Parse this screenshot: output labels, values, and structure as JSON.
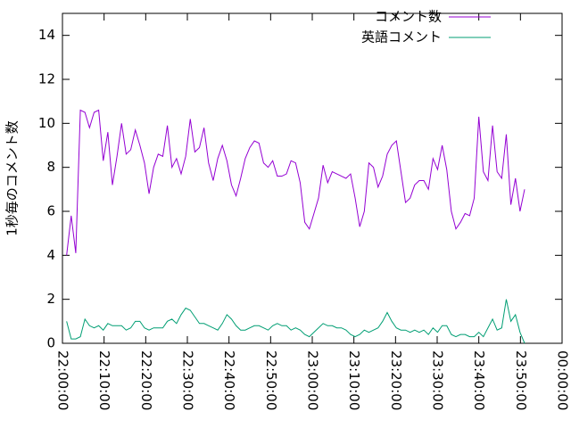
{
  "chart_data": {
    "type": "line",
    "ylabel": "1秒毎のコメント数",
    "xlim": [
      "22:00:00",
      "00:00:00"
    ],
    "xticks": [
      "22:00:00",
      "22:10:00",
      "22:20:00",
      "22:30:00",
      "22:40:00",
      "22:50:00",
      "23:00:00",
      "23:10:00",
      "23:20:00",
      "23:30:00",
      "23:40:00",
      "23:50:00",
      "00:00:00"
    ],
    "ylim": [
      0,
      15
    ],
    "yticks": [
      0,
      2,
      4,
      6,
      8,
      10,
      12,
      14
    ],
    "legend": "top-right",
    "x": [
      "22:01:00",
      "22:02:06",
      "22:03:12",
      "22:04:18",
      "22:05:24",
      "22:06:30",
      "22:07:36",
      "22:08:42",
      "22:09:48",
      "22:10:54",
      "22:12:00",
      "22:13:06",
      "22:14:12",
      "22:15:18",
      "22:16:24",
      "22:17:30",
      "22:18:36",
      "22:19:42",
      "22:20:48",
      "22:21:54",
      "22:23:00",
      "22:24:06",
      "22:25:12",
      "22:26:18",
      "22:27:24",
      "22:28:30",
      "22:29:36",
      "22:30:42",
      "22:31:48",
      "22:32:54",
      "22:34:00",
      "22:35:06",
      "22:36:12",
      "22:37:18",
      "22:38:24",
      "22:39:30",
      "22:40:36",
      "22:41:42",
      "22:42:48",
      "22:43:54",
      "22:45:00",
      "22:46:06",
      "22:47:12",
      "22:48:18",
      "22:49:24",
      "22:50:30",
      "22:51:36",
      "22:52:42",
      "22:53:48",
      "22:54:54",
      "22:56:00",
      "22:57:06",
      "22:58:12",
      "22:59:18",
      "23:00:24",
      "23:01:30",
      "23:02:36",
      "23:03:42",
      "23:04:48",
      "23:05:54",
      "23:07:00",
      "23:08:06",
      "23:09:12",
      "23:10:18",
      "23:11:24",
      "23:12:30",
      "23:13:36",
      "23:14:42",
      "23:15:48",
      "23:16:54",
      "23:18:00",
      "23:19:06",
      "23:20:12",
      "23:21:18",
      "23:22:24",
      "23:23:30",
      "23:24:36",
      "23:25:42",
      "23:26:48",
      "23:27:54",
      "23:29:00",
      "23:30:06",
      "23:31:12",
      "23:32:18",
      "23:33:24",
      "23:34:30",
      "23:35:36",
      "23:36:42",
      "23:37:48",
      "23:38:54",
      "23:40:00",
      "23:41:06",
      "23:42:12",
      "23:43:18",
      "23:44:24",
      "23:45:30",
      "23:46:36",
      "23:47:42",
      "23:48:48",
      "23:49:54",
      "23:51:00"
    ],
    "series": [
      {
        "name": "コメント数",
        "color": "#9400d3",
        "values": [
          4.0,
          5.8,
          4.1,
          10.6,
          10.5,
          9.8,
          10.5,
          10.6,
          8.3,
          9.6,
          7.2,
          8.5,
          10.0,
          8.6,
          8.8,
          9.7,
          9.0,
          8.2,
          6.8,
          8.0,
          8.6,
          8.5,
          9.9,
          8.0,
          8.4,
          7.7,
          8.5,
          10.2,
          8.7,
          8.9,
          9.8,
          8.2,
          7.4,
          8.4,
          9.0,
          8.3,
          7.2,
          6.7,
          7.5,
          8.4,
          8.9,
          9.2,
          9.1,
          8.2,
          8.0,
          8.3,
          7.6,
          7.6,
          7.7,
          8.3,
          8.2,
          7.3,
          5.5,
          5.2,
          5.9,
          6.6,
          8.1,
          7.3,
          7.8,
          7.7,
          7.6,
          7.5,
          7.7,
          6.6,
          5.3,
          6.0,
          8.2,
          8.0,
          7.1,
          7.6,
          8.6,
          9.0,
          9.2,
          7.8,
          6.4,
          6.6,
          7.2,
          7.4,
          7.4,
          7.0,
          8.4,
          7.9,
          9.0,
          7.9,
          6.0,
          5.2,
          5.5,
          5.9,
          5.8,
          6.6,
          10.3,
          7.8,
          7.4,
          9.9,
          7.8,
          7.5,
          9.5,
          6.3,
          7.5,
          6.0,
          7.0
        ]
      },
      {
        "name": "英語コメント",
        "color": "#009e73",
        "values": [
          1.0,
          0.2,
          0.2,
          0.3,
          1.1,
          0.8,
          0.7,
          0.8,
          0.6,
          0.9,
          0.8,
          0.8,
          0.8,
          0.6,
          0.7,
          1.0,
          1.0,
          0.7,
          0.6,
          0.7,
          0.7,
          0.7,
          1.0,
          1.1,
          0.9,
          1.3,
          1.6,
          1.5,
          1.2,
          0.9,
          0.9,
          0.8,
          0.7,
          0.6,
          0.9,
          1.3,
          1.1,
          0.8,
          0.6,
          0.6,
          0.7,
          0.8,
          0.8,
          0.7,
          0.6,
          0.8,
          0.9,
          0.8,
          0.8,
          0.6,
          0.7,
          0.6,
          0.4,
          0.3,
          0.5,
          0.7,
          0.9,
          0.8,
          0.8,
          0.7,
          0.7,
          0.6,
          0.4,
          0.3,
          0.4,
          0.6,
          0.5,
          0.6,
          0.7,
          1.0,
          1.4,
          1.0,
          0.7,
          0.6,
          0.6,
          0.5,
          0.6,
          0.5,
          0.6,
          0.4,
          0.7,
          0.5,
          0.8,
          0.8,
          0.4,
          0.3,
          0.4,
          0.4,
          0.3,
          0.3,
          0.5,
          0.3,
          0.7,
          1.1,
          0.6,
          0.7,
          2.0,
          1.0,
          1.3,
          0.5,
          0.0
        ]
      }
    ]
  }
}
